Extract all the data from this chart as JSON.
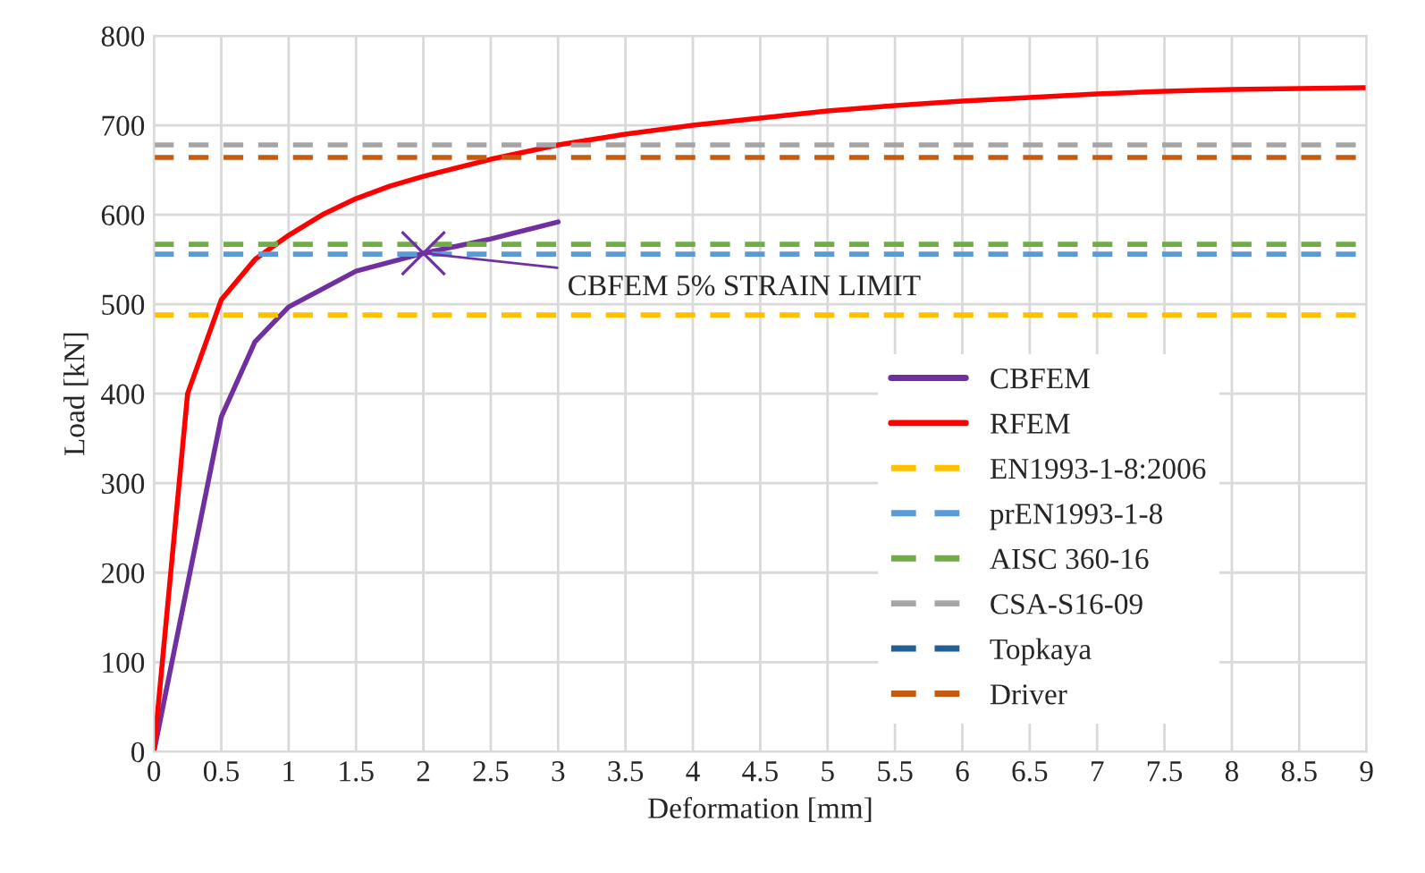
{
  "chart_data": {
    "type": "line",
    "xlabel": "Deformation [mm]",
    "ylabel": "Load [kN]",
    "xlim": [
      0,
      9
    ],
    "xticks": [
      0,
      0.5,
      1,
      1.5,
      2,
      2.5,
      3,
      3.5,
      4,
      4.5,
      5,
      5.5,
      6,
      6.5,
      7,
      7.5,
      8,
      8.5,
      9
    ],
    "ylim": [
      0,
      800
    ],
    "yticks": [
      0,
      100,
      200,
      300,
      400,
      500,
      600,
      700,
      800
    ],
    "grid": true,
    "legend": "bottom right",
    "annotations": [
      {
        "text": "CBFEM 5% STRAIN LIMIT",
        "x": 2,
        "y": 557
      }
    ],
    "series": [
      {
        "name": "CBFEM",
        "color": "#7030a0",
        "line_style": "solid",
        "x": [
          0,
          0.5,
          0.75,
          1,
          1.5,
          2,
          2.5,
          3
        ],
        "values": [
          0,
          374,
          458,
          497,
          537,
          557,
          573,
          592
        ]
      },
      {
        "name": "RFEM",
        "color": "#ff0000",
        "line_style": "solid",
        "x": [
          0,
          0.25,
          0.5,
          0.75,
          1,
          1.25,
          1.5,
          1.75,
          2,
          2.5,
          3,
          3.5,
          4,
          4.5,
          5,
          5.5,
          6,
          6.5,
          7,
          7.5,
          8,
          8.5,
          9
        ],
        "values": [
          0,
          400,
          505,
          550,
          577,
          600,
          618,
          632,
          643,
          662,
          678,
          690,
          700,
          708,
          716,
          722,
          727,
          731,
          735,
          738,
          740,
          741,
          742
        ]
      },
      {
        "name": "EN1993-1-8:2006",
        "color": "#ffc000",
        "line_style": "dashed",
        "x": [
          0,
          9
        ],
        "values": [
          488,
          488
        ]
      },
      {
        "name": "prEN1993-1-8",
        "color": "#5b9bd5",
        "line_style": "dashed",
        "x": [
          0,
          9
        ],
        "values": [
          556,
          556
        ]
      },
      {
        "name": "AISC 360-16",
        "color": "#70ad47",
        "line_style": "dashed",
        "x": [
          0,
          9
        ],
        "values": [
          567,
          567
        ]
      },
      {
        "name": "CSA-S16-09",
        "color": "#a5a5a5",
        "line_style": "dashed",
        "x": [
          0,
          9
        ],
        "values": [
          678,
          678
        ]
      },
      {
        "name": "Topkaya",
        "color": "#255e91",
        "line_style": "dashed"
      },
      {
        "name": "Driver",
        "color": "#c55a11",
        "line_style": "dashed",
        "x": [
          0,
          9
        ],
        "values": [
          664,
          664
        ]
      },
      {
        "type": "scatter",
        "marker": "cross",
        "color": "#7030a0",
        "x": [
          2
        ],
        "values": [
          557
        ]
      }
    ]
  }
}
